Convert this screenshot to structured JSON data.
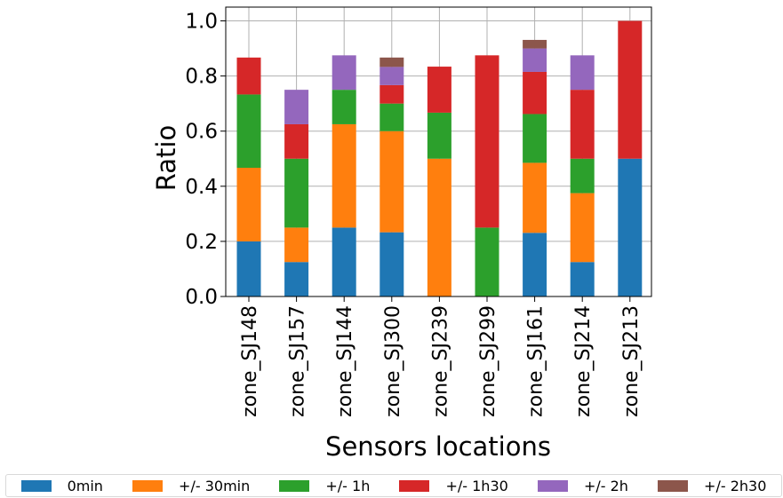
{
  "chart_data": {
    "type": "bar",
    "stacked": true,
    "xlabel": "Sensors locations",
    "ylabel": "Ratio",
    "ylim": [
      0,
      1.05
    ],
    "yticks": [
      "0.0",
      "0.2",
      "0.4",
      "0.6",
      "0.8",
      "1.0"
    ],
    "grid": true,
    "legend_position": "bottom",
    "categories": [
      "zone_SJ148",
      "zone_SJ157",
      "zone_SJ144",
      "zone_SJ300",
      "zone_SJ239",
      "zone_SJ299",
      "zone_SJ161",
      "zone_SJ214",
      "zone_SJ213"
    ],
    "series": [
      {
        "name": "0min",
        "color": "#1f77b4",
        "values": [
          0.2,
          0.125,
          0.25,
          0.233,
          0.0,
          0.0,
          0.231,
          0.125,
          0.5
        ]
      },
      {
        "name": "+/- 30min",
        "color": "#ff7f0e",
        "values": [
          0.267,
          0.125,
          0.375,
          0.367,
          0.5,
          0.0,
          0.254,
          0.25,
          0.0
        ]
      },
      {
        "name": "+/- 1h",
        "color": "#2ca02c",
        "values": [
          0.266,
          0.25,
          0.125,
          0.1,
          0.167,
          0.25,
          0.177,
          0.125,
          0.0
        ]
      },
      {
        "name": "+/- 1h30",
        "color": "#d62728",
        "values": [
          0.134,
          0.125,
          0.0,
          0.067,
          0.167,
          0.625,
          0.153,
          0.25,
          0.5
        ]
      },
      {
        "name": "+/- 2h",
        "color": "#9467bd",
        "values": [
          0.0,
          0.125,
          0.125,
          0.066,
          0.0,
          0.0,
          0.085,
          0.125,
          0.0
        ]
      },
      {
        "name": "+/- 2h30",
        "color": "#8c564b",
        "values": [
          0.0,
          0.0,
          0.0,
          0.034,
          0.0,
          0.0,
          0.031,
          0.0,
          0.0
        ]
      }
    ]
  }
}
